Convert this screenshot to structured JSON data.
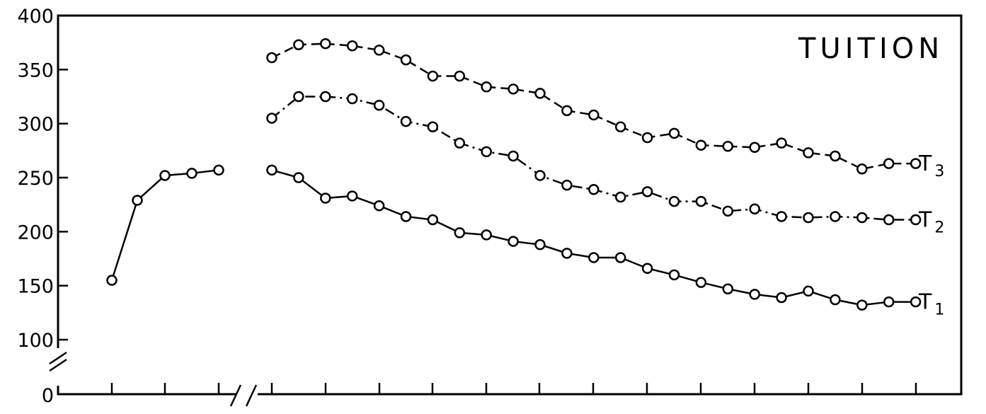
{
  "chart_data": {
    "type": "line",
    "title": "TUITION",
    "ylim": [
      100,
      400
    ],
    "y_ticks": [
      "400",
      "350",
      "300",
      "250",
      "200",
      "150",
      "100",
      "0"
    ],
    "y_axis_break": true,
    "x_axis_break": true,
    "x_tick_labels": [],
    "grid": false,
    "pre_break": {
      "x": [
        1,
        2,
        3,
        4,
        5
      ],
      "values": [
        155,
        229,
        252,
        254,
        257
      ]
    },
    "series": [
      {
        "name": "T1",
        "label_main": "T",
        "label_sub": "1",
        "style": "solid",
        "x": [
          7,
          7.5,
          8,
          8.5,
          9,
          9.5,
          10,
          10.5,
          11,
          11.5,
          12,
          12.5,
          13,
          13.5,
          14,
          14.5,
          15,
          15.5,
          16,
          16.5,
          17,
          17.5,
          18,
          18.5,
          19
        ],
        "values": [
          257,
          250,
          231,
          233,
          224,
          214,
          211,
          199,
          197,
          191,
          188,
          180,
          176,
          176,
          166,
          160,
          153,
          147,
          142,
          139,
          145,
          137,
          132,
          135,
          135
        ]
      },
      {
        "name": "T2",
        "label_main": "T",
        "label_sub": "2",
        "style": "dash-dot",
        "x": [
          7,
          7.5,
          8,
          8.5,
          9,
          9.5,
          10,
          10.5,
          11,
          11.5,
          12,
          12.5,
          13,
          13.5,
          14,
          14.5,
          15,
          15.5,
          16,
          16.5,
          17,
          17.5,
          18,
          18.5,
          19
        ],
        "values": [
          305,
          325,
          325,
          323,
          317,
          302,
          297,
          282,
          274,
          270,
          252,
          243,
          239,
          232,
          237,
          228,
          228,
          219,
          221,
          214,
          213,
          214,
          213,
          211,
          211
        ]
      },
      {
        "name": "T3",
        "label_main": "T",
        "label_sub": "3",
        "style": "dashed",
        "x": [
          7,
          7.5,
          8,
          8.5,
          9,
          9.5,
          10,
          10.5,
          11,
          11.5,
          12,
          12.5,
          13,
          13.5,
          14,
          14.5,
          15,
          15.5,
          16,
          16.5,
          17,
          17.5,
          18,
          18.5,
          19
        ],
        "values": [
          361,
          373,
          374,
          372,
          368,
          359,
          344,
          344,
          334,
          332,
          328,
          312,
          308,
          297,
          287,
          291,
          280,
          279,
          278,
          282,
          273,
          270,
          258,
          263,
          263
        ]
      }
    ]
  }
}
